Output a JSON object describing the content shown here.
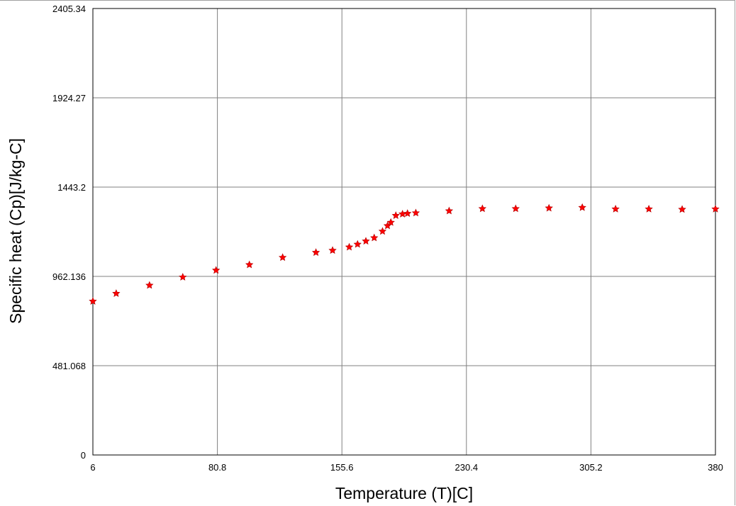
{
  "chart_data": {
    "type": "scatter",
    "xlabel": "Temperature (T)[C]",
    "ylabel": "Specific heat (Cp)[J/kg-C]",
    "xlim": [
      6,
      380
    ],
    "ylim": [
      0,
      2405.34
    ],
    "x_ticks": [
      "6",
      "80.8",
      "155.6",
      "230.4",
      "305.2",
      "380"
    ],
    "y_ticks": [
      "0",
      "481.068",
      "962.136",
      "1443.2",
      "1924.27",
      "2405.34"
    ],
    "grid": true,
    "marker": "star",
    "marker_color": "#ff0000",
    "series": [
      {
        "x": [
          6,
          20,
          40,
          60,
          80,
          100,
          120,
          140,
          150,
          160,
          165,
          170,
          175,
          180,
          183,
          185,
          188,
          192,
          195,
          200,
          220,
          240,
          260,
          280,
          300,
          320,
          340,
          360,
          380
        ],
        "y": [
          828,
          870,
          914,
          958,
          995,
          1025,
          1064,
          1091,
          1102,
          1120,
          1135,
          1152,
          1170,
          1205,
          1235,
          1253,
          1290,
          1298,
          1301,
          1304,
          1315,
          1327,
          1327,
          1330,
          1333,
          1325,
          1325,
          1323,
          1325
        ]
      }
    ]
  }
}
